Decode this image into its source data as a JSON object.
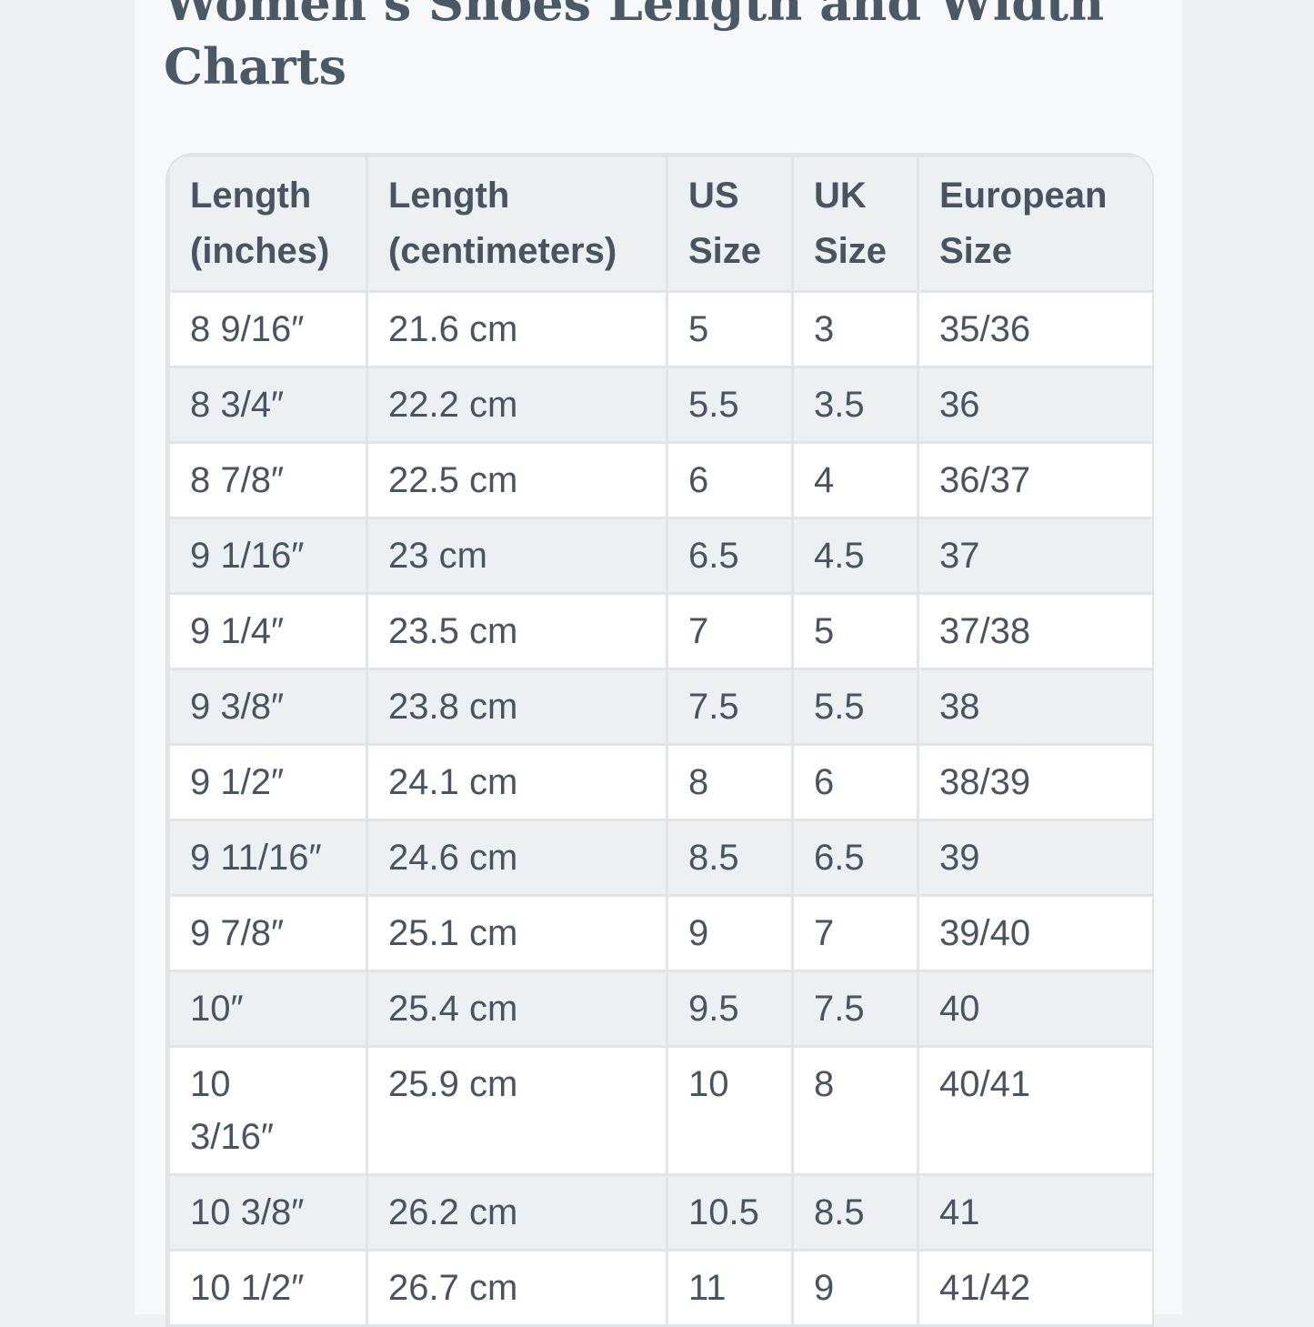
{
  "header": {
    "title": "Women’s Shoes Length and Width Charts"
  },
  "table": {
    "columns": [
      "Length (inches)",
      "Length (centimeters)",
      "US Size",
      "UK Size",
      "European Size"
    ],
    "rows": [
      [
        "8 9/16″",
        "21.6 cm",
        "5",
        "3",
        "35/36"
      ],
      [
        "8 3/4″",
        "22.2 cm",
        "5.5",
        "3.5",
        "36"
      ],
      [
        "8 7/8″",
        "22.5 cm",
        "6",
        "4",
        "36/37"
      ],
      [
        "9 1/16″",
        "23 cm",
        "6.5",
        "4.5",
        "37"
      ],
      [
        "9 1/4″",
        "23.5 cm",
        "7",
        "5",
        "37/38"
      ],
      [
        "9 3/8″",
        "23.8 cm",
        "7.5",
        "5.5",
        "38"
      ],
      [
        "9 1/2″",
        "24.1 cm",
        "8",
        "6",
        "38/39"
      ],
      [
        "9 11/16″",
        "24.6 cm",
        "8.5",
        "6.5",
        "39"
      ],
      [
        "9 7/8″",
        "25.1 cm",
        "9",
        "7",
        "39/40"
      ],
      [
        "10″",
        "25.4 cm",
        "9.5",
        "7.5",
        "40"
      ],
      [
        "10 3/16″",
        "25.9 cm",
        "10",
        "8",
        "40/41"
      ],
      [
        "10 3/8″",
        "26.2 cm",
        "10.5",
        "8.5",
        "41"
      ],
      [
        "10 1/2″",
        "26.7 cm",
        "11",
        "9",
        "41/42"
      ]
    ]
  }
}
